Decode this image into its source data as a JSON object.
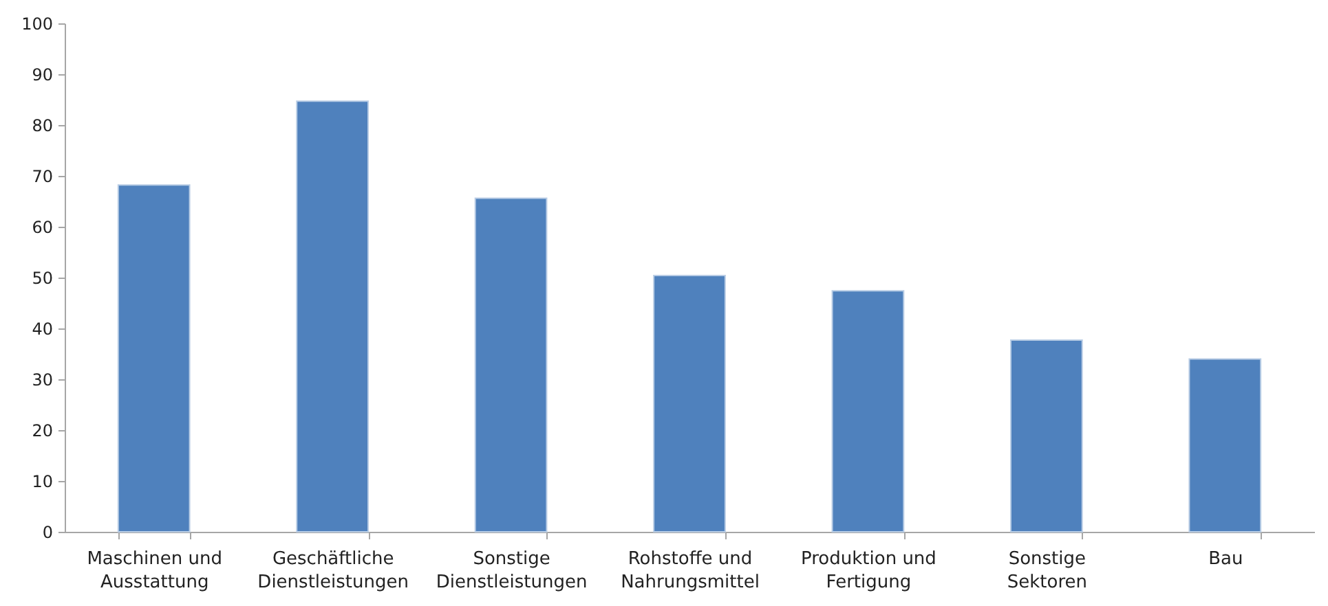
{
  "chart_data": {
    "type": "bar",
    "categories": [
      "Maschinen und Ausstattung",
      "Geschäftliche Dienstleistungen",
      "Sonstige Dienstleistungen",
      "Rohstoffe und Nahrungsmittel",
      "Produktion und Fertigung",
      "Sonstige Sektoren",
      "Bau"
    ],
    "values": [
      68.2,
      84.7,
      65.6,
      50.4,
      47.4,
      37.7,
      34.0
    ],
    "color": "#4f81bd",
    "ylim": [
      0,
      100
    ],
    "yticks": [
      0,
      10,
      20,
      30,
      40,
      50,
      60,
      70,
      80,
      90,
      100
    ],
    "grid": false
  }
}
